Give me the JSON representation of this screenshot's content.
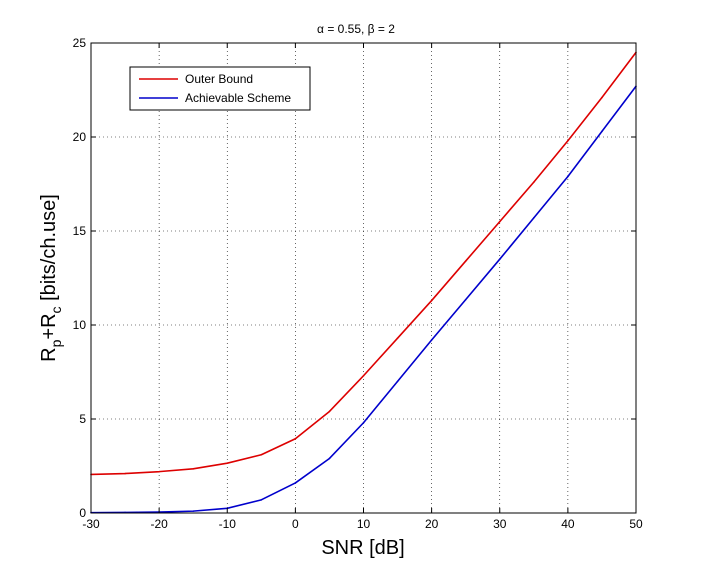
{
  "chart_data": {
    "type": "line",
    "title": "α = 0.55, β = 2",
    "xlabel": "SNR [dB]",
    "ylabel": "R_p+R_c [bits/ch.use]",
    "ylabel_parts": {
      "r1": "R",
      "sub1": "p",
      "plus": "+R",
      "sub2": "c",
      "rest": " [bits/ch.use]"
    },
    "xlim": [
      -30,
      50
    ],
    "ylim": [
      0,
      25
    ],
    "xticks": [
      -30,
      -20,
      -10,
      0,
      10,
      20,
      30,
      40,
      50
    ],
    "yticks": [
      0,
      5,
      10,
      15,
      20,
      25
    ],
    "xtick_labels": [
      "-30",
      "-20",
      "-10",
      "0",
      "10",
      "20",
      "30",
      "40",
      "50"
    ],
    "ytick_labels": [
      "0",
      "5",
      "10",
      "15",
      "20",
      "25"
    ],
    "grid": true,
    "legend_position": "top-left",
    "series": [
      {
        "name": "Outer Bound",
        "color": "#dd0000",
        "x": [
          -30,
          -25,
          -20,
          -15,
          -10,
          -5,
          0,
          5,
          10,
          15,
          20,
          25,
          30,
          35,
          40,
          45,
          50
        ],
        "y": [
          2.05,
          2.1,
          2.2,
          2.35,
          2.65,
          3.1,
          3.95,
          5.4,
          7.3,
          9.3,
          11.3,
          13.4,
          15.5,
          17.6,
          19.8,
          22.1,
          24.5
        ]
      },
      {
        "name": "Achievable Scheme",
        "color": "#0000cc",
        "x": [
          -30,
          -25,
          -20,
          -15,
          -10,
          -5,
          0,
          5,
          10,
          15,
          20,
          25,
          30,
          35,
          40,
          45,
          50
        ],
        "y": [
          0.02,
          0.03,
          0.05,
          0.1,
          0.25,
          0.7,
          1.6,
          2.9,
          4.8,
          7.0,
          9.2,
          11.35,
          13.5,
          15.7,
          17.9,
          20.3,
          22.7
        ]
      }
    ]
  }
}
